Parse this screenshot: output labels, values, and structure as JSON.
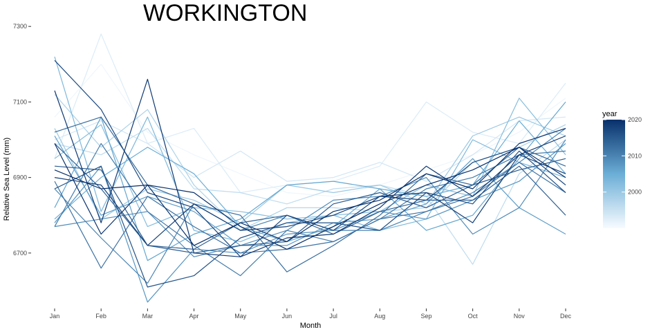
{
  "chart_data": {
    "type": "line",
    "title": "WORKINGTON",
    "xlabel": "Month",
    "ylabel": "Relative Sea Level (mm)",
    "categories": [
      "Jan",
      "Feb",
      "Mar",
      "Apr",
      "May",
      "Jun",
      "Jul",
      "Aug",
      "Sep",
      "Oct",
      "Nov",
      "Dec"
    ],
    "y_ticks": [
      6700,
      6900,
      7100,
      7300
    ],
    "ylim": [
      6555,
      7315
    ],
    "grid": false,
    "legend": {
      "title": "year",
      "placement": "right",
      "type": "colorbar",
      "ticks": [
        2000,
        2010,
        2020
      ],
      "range": [
        1990,
        2020
      ],
      "color_low": "#f7fbff",
      "color_high": "#08306b"
    },
    "series": [
      {
        "year": 1991,
        "values": [
          7060,
          7200,
          7020,
          6960,
          6910,
          6860,
          6850,
          6880,
          6920,
          6960,
          7020,
          7110
        ]
      },
      {
        "year": 1993,
        "values": [
          6950,
          7280,
          6990,
          7030,
          6860,
          6880,
          6890,
          6930,
          7100,
          7020,
          6990,
          7150
        ]
      },
      {
        "year": 1994,
        "values": [
          7000,
          7050,
          6990,
          6900,
          6970,
          6890,
          6900,
          6940,
          6890,
          6960,
          7050,
          7060
        ]
      },
      {
        "year": 1996,
        "values": [
          6990,
          6960,
          7030,
          6870,
          6860,
          6830,
          6870,
          6880,
          6850,
          6670,
          6910,
          7000
        ]
      },
      {
        "year": 1998,
        "values": [
          7120,
          6980,
          7080,
          6880,
          6760,
          6820,
          6820,
          6810,
          6820,
          6940,
          6980,
          7040
        ]
      },
      {
        "year": 2000,
        "values": [
          7030,
          6790,
          6870,
          6840,
          6780,
          6880,
          6860,
          6880,
          6830,
          7010,
          7060,
          7010
        ]
      },
      {
        "year": 2002,
        "values": [
          6950,
          7040,
          6770,
          6820,
          6810,
          6790,
          6800,
          6810,
          6880,
          6850,
          7110,
          6960
        ]
      },
      {
        "year": 2003,
        "values": [
          7220,
          6810,
          7060,
          6760,
          6730,
          6780,
          6800,
          6760,
          6790,
          7000,
          6940,
          6900
        ]
      },
      {
        "year": 2005,
        "values": [
          6790,
          6900,
          6980,
          6910,
          6770,
          6730,
          6770,
          6870,
          6850,
          6880,
          7050,
          6910
        ]
      },
      {
        "year": 2006,
        "values": [
          6820,
          7060,
          6680,
          6750,
          6790,
          6880,
          6890,
          6870,
          6760,
          6800,
          6950,
          7100
        ]
      },
      {
        "year": 2007,
        "values": [
          7010,
          6800,
          6850,
          6810,
          6720,
          6720,
          6780,
          6790,
          6830,
          6950,
          6820,
          6750
        ]
      },
      {
        "year": 2008,
        "values": [
          6780,
          6930,
          6570,
          6710,
          6700,
          6750,
          6760,
          6810,
          6790,
          6840,
          6890,
          6990
        ]
      },
      {
        "year": 2009,
        "values": [
          6770,
          6790,
          6810,
          6690,
          6720,
          6760,
          6840,
          6850,
          6900,
          6750,
          6820,
          7000
        ]
      },
      {
        "year": 2010,
        "values": [
          6870,
          6740,
          6620,
          6830,
          6760,
          6800,
          6760,
          6760,
          6810,
          6860,
          6940,
          7030
        ]
      },
      {
        "year": 2011,
        "values": [
          6770,
          6990,
          6810,
          6720,
          6640,
          6760,
          6730,
          6790,
          6870,
          6900,
          6960,
          6970
        ]
      },
      {
        "year": 2012,
        "values": [
          6890,
          6660,
          6850,
          6770,
          6700,
          6710,
          6730,
          6790,
          6810,
          6850,
          6940,
          6860
        ]
      },
      {
        "year": 2013,
        "values": [
          7020,
          7060,
          6880,
          6830,
          6800,
          6650,
          6720,
          6800,
          6910,
          6880,
          6980,
          6930
        ]
      },
      {
        "year": 2014,
        "values": [
          6990,
          6870,
          6720,
          6710,
          6780,
          6800,
          6750,
          6810,
          6840,
          6840,
          6930,
          6800
        ]
      },
      {
        "year": 2015,
        "values": [
          6930,
          6920,
          6720,
          6700,
          6720,
          6730,
          6830,
          6860,
          6820,
          6880,
          6920,
          6950
        ]
      },
      {
        "year": 2016,
        "values": [
          6870,
          6930,
          6610,
          6640,
          6740,
          6780,
          6780,
          6760,
          6860,
          6830,
          6970,
          6860
        ]
      },
      {
        "year": 2017,
        "values": [
          7210,
          7080,
          6860,
          6820,
          6690,
          6800,
          6760,
          6850,
          6840,
          6940,
          6980,
          6880
        ]
      },
      {
        "year": 2018,
        "values": [
          6900,
          6880,
          6720,
          6830,
          6760,
          6770,
          6800,
          6850,
          6860,
          6780,
          6960,
          6910
        ]
      },
      {
        "year": 2019,
        "values": [
          7130,
          6780,
          7160,
          6700,
          6690,
          6740,
          6750,
          6820,
          6930,
          6850,
          6960,
          7010
        ]
      },
      {
        "year": 2020,
        "values": [
          6920,
          6870,
          6880,
          6720,
          6780,
          6730,
          6810,
          6840,
          6910,
          6870,
          6990,
          7030
        ]
      },
      {
        "year": 2021,
        "values": [
          6990,
          6750,
          6880,
          6860,
          6770,
          6710,
          6770,
          6830,
          6880,
          6920,
          6980,
          6900
        ]
      }
    ]
  }
}
